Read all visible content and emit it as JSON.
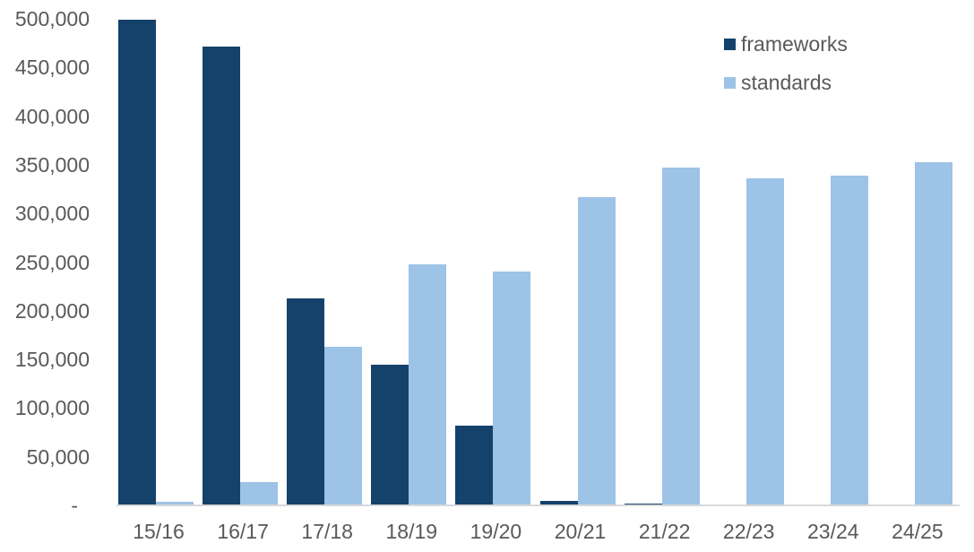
{
  "chart_data": {
    "type": "bar",
    "title": "",
    "xlabel": "",
    "ylabel": "",
    "ylim": [
      0,
      500000
    ],
    "grid": false,
    "legend_position": "top-right",
    "y_ticks": [
      "-",
      "50,000",
      "100,000",
      "150,000",
      "200,000",
      "250,000",
      "300,000",
      "350,000",
      "400,000",
      "450,000",
      "500,000"
    ],
    "categories": [
      "15/16",
      "16/17",
      "17/18",
      "18/19",
      "19/20",
      "20/21",
      "21/22",
      "22/23",
      "23/24",
      "24/25"
    ],
    "series": [
      {
        "name": "frameworks",
        "color": "#14426b",
        "values": [
          499000,
          471000,
          213000,
          145000,
          82000,
          5000,
          2000,
          1000,
          1000,
          1000
        ]
      },
      {
        "name": "standards",
        "color": "#9dc3e6",
        "values": [
          4000,
          24000,
          163000,
          248000,
          240000,
          317000,
          347000,
          336000,
          339000,
          353000
        ]
      }
    ]
  }
}
